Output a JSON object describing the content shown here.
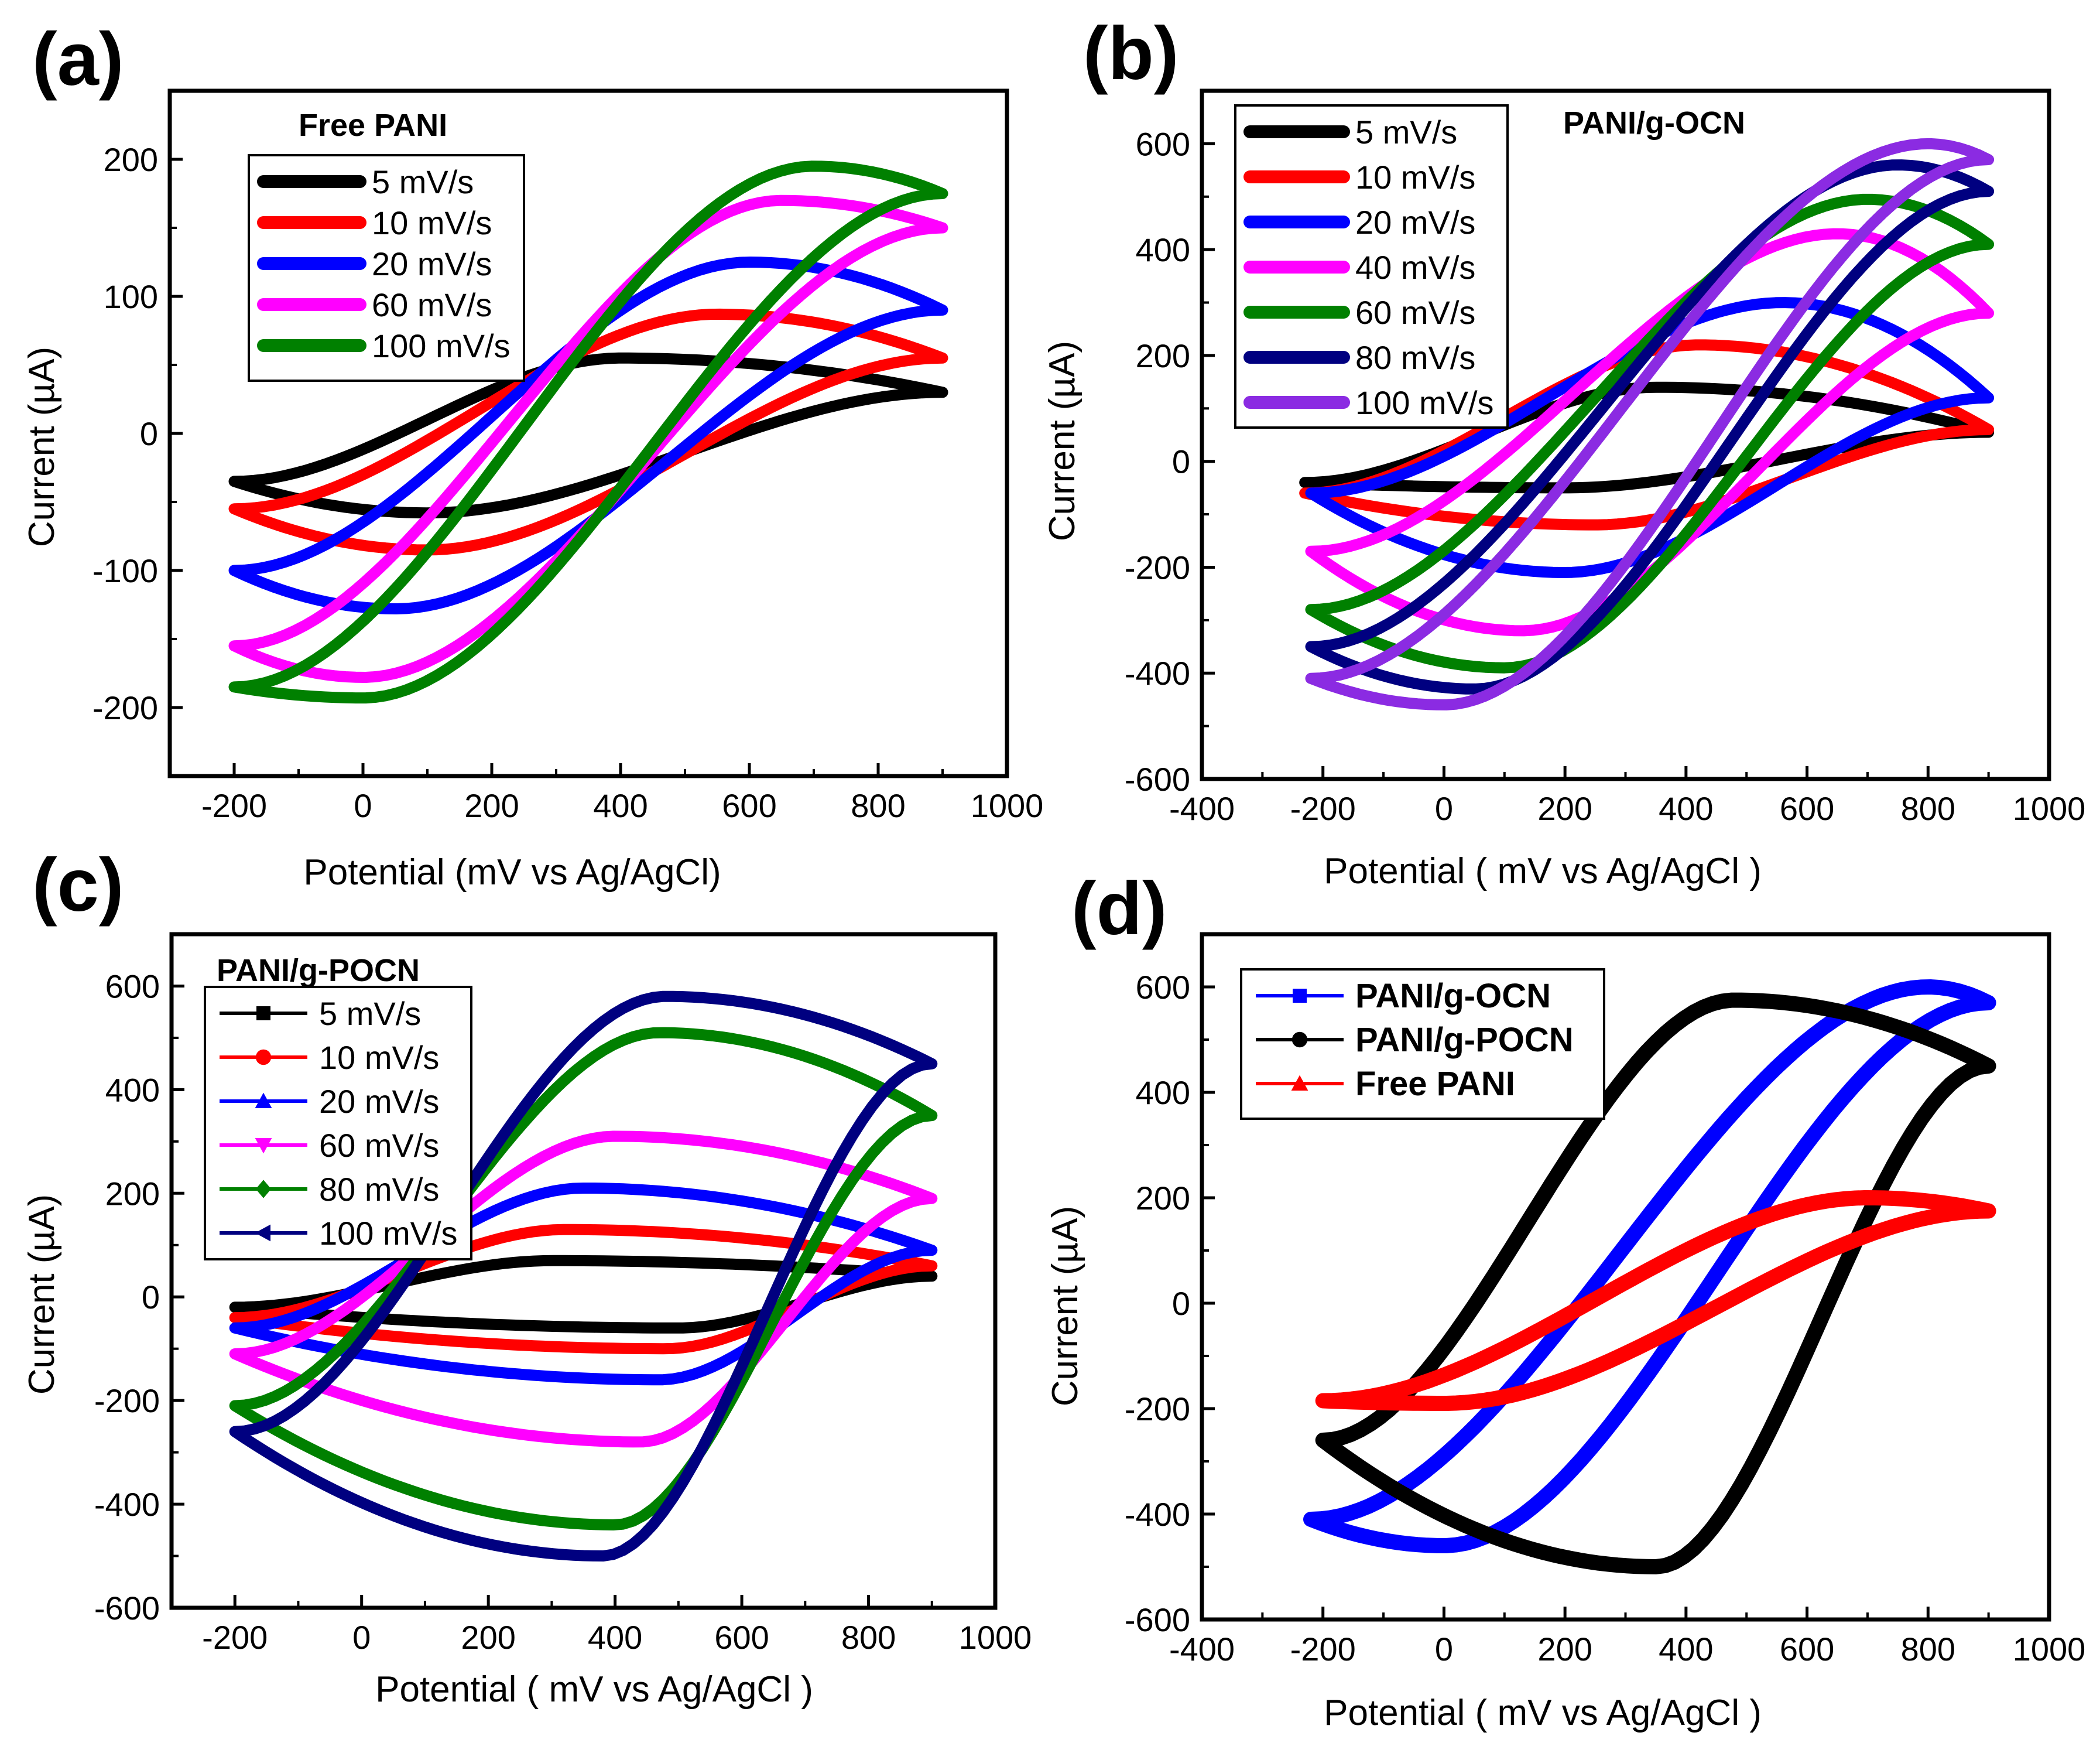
{
  "panels": [
    {
      "id": "a",
      "panel_label": "(a)",
      "legend_title": "Free PANI",
      "xlabel": "Potential (mV vs Ag/AgCl)",
      "ylabel": "Current (µA)",
      "xticks": [
        "-200",
        "0",
        "200",
        "400",
        "600",
        "800",
        "1000"
      ],
      "yticks": [
        "-200",
        "-100",
        "0",
        "100",
        "200"
      ]
    },
    {
      "id": "b",
      "panel_label": "(b)",
      "legend_title": "PANI/g-OCN",
      "xlabel": "Potential ( mV vs Ag/AgCl )",
      "ylabel": "Current (µA)",
      "xticks": [
        "-400",
        "-200",
        "0",
        "200",
        "400",
        "600",
        "800",
        "1000"
      ],
      "yticks": [
        "-600",
        "-400",
        "-200",
        "0",
        "200",
        "400",
        "600"
      ]
    },
    {
      "id": "c",
      "panel_label": "(c)",
      "legend_title": "PANI/g-POCN",
      "xlabel": "Potential ( mV vs Ag/AgCl )",
      "ylabel": "Current (µA)",
      "xticks": [
        "-200",
        "0",
        "200",
        "400",
        "600",
        "800",
        "1000"
      ],
      "yticks": [
        "-600",
        "-400",
        "-200",
        "0",
        "200",
        "400",
        "600"
      ]
    },
    {
      "id": "d",
      "panel_label": "(d)",
      "legend_title": "",
      "xlabel": "Potential ( mV vs Ag/AgCl )",
      "ylabel": "Current (µA)",
      "xticks": [
        "-400",
        "-200",
        "0",
        "200",
        "400",
        "600",
        "800",
        "1000"
      ],
      "yticks": [
        "-600",
        "-400",
        "-200",
        "0",
        "200",
        "400",
        "600"
      ]
    }
  ],
  "chart_data": [
    {
      "type": "line",
      "panel": "a",
      "title": "Free PANI",
      "xlabel": "Potential (mV vs Ag/AgCl)",
      "ylabel": "Current (µA)",
      "xlim": [
        -300,
        1000
      ],
      "ylim": [
        -250,
        250
      ],
      "legend_position": "top-left",
      "series": [
        {
          "name": "5 mV/s",
          "color": "#000000",
          "marker": "none",
          "loop": {
            "xmin": -200,
            "xmax": 900,
            "i_start": -35,
            "i_end": 30,
            "ox_peak_x": 400,
            "ox_peak_i": 55,
            "red_peak_x": 100,
            "red_peak_i": -58,
            "x_sweep_start": 420
          }
        },
        {
          "name": "10 mV/s",
          "color": "#ff0000",
          "marker": "none",
          "loop": {
            "xmin": -200,
            "xmax": 900,
            "i_start": -55,
            "i_end": 55,
            "ox_peak_x": 550,
            "ox_peak_i": 87,
            "red_peak_x": 100,
            "red_peak_i": -85,
            "x_sweep_start": 440
          }
        },
        {
          "name": "20 mV/s",
          "color": "#0000ff",
          "marker": "none",
          "loop": {
            "xmin": -200,
            "xmax": 900,
            "i_start": -100,
            "i_end": 90,
            "ox_peak_x": 600,
            "ox_peak_i": 125,
            "red_peak_x": 50,
            "red_peak_i": -128,
            "x_sweep_start": 450
          }
        },
        {
          "name": "60 mV/s",
          "color": "#ff00ff",
          "marker": "none",
          "loop": {
            "xmin": -200,
            "xmax": 900,
            "i_start": -155,
            "i_end": 150,
            "ox_peak_x": 650,
            "ox_peak_i": 170,
            "red_peak_x": 0,
            "red_peak_i": -178,
            "x_sweep_start": 480
          }
        },
        {
          "name": "100 mV/s",
          "color": "#008000",
          "marker": "none",
          "loop": {
            "xmin": -200,
            "xmax": 900,
            "i_start": -185,
            "i_end": 175,
            "ox_peak_x": 700,
            "ox_peak_i": 195,
            "red_peak_x": 0,
            "red_peak_i": -193,
            "x_sweep_start": 270
          }
        }
      ]
    },
    {
      "type": "line",
      "panel": "b",
      "title": "PANI/g-OCN",
      "xlabel": "Potential ( mV vs Ag/AgCl )",
      "ylabel": "Current (µA)",
      "xlim": [
        -400,
        1000
      ],
      "ylim": [
        -600,
        700
      ],
      "legend_position": "top-left",
      "series": [
        {
          "name": "5 mV/s",
          "color": "#000000",
          "marker": "none",
          "loop": {
            "xmin": -230,
            "xmax": 900,
            "i_start": -40,
            "i_end": 55,
            "ox_peak_x": 350,
            "ox_peak_i": 140,
            "red_peak_x": 200,
            "red_peak_i": -50,
            "x_sweep_start": 300
          }
        },
        {
          "name": "10 mV/s",
          "color": "#ff0000",
          "marker": "none",
          "loop": {
            "xmin": -230,
            "xmax": 900,
            "i_start": -60,
            "i_end": 60,
            "ox_peak_x": 420,
            "ox_peak_i": 220,
            "red_peak_x": 250,
            "red_peak_i": -120,
            "x_sweep_start": 300
          }
        },
        {
          "name": "20 mV/s",
          "color": "#0000ff",
          "marker": "none",
          "loop": {
            "xmin": -220,
            "xmax": 900,
            "i_start": -60,
            "i_end": 120,
            "ox_peak_x": 560,
            "ox_peak_i": 300,
            "red_peak_x": 200,
            "red_peak_i": -210,
            "x_sweep_start": 280
          }
        },
        {
          "name": "40 mV/s",
          "color": "#ff00ff",
          "marker": "none",
          "loop": {
            "xmin": -220,
            "xmax": 900,
            "i_start": -170,
            "i_end": 280,
            "ox_peak_x": 650,
            "ox_peak_i": 430,
            "red_peak_x": 130,
            "red_peak_i": -320,
            "x_sweep_start": 260
          }
        },
        {
          "name": "60 mV/s",
          "color": "#008000",
          "marker": "none",
          "loop": {
            "xmin": -220,
            "xmax": 900,
            "i_start": -280,
            "i_end": 410,
            "ox_peak_x": 700,
            "ox_peak_i": 495,
            "red_peak_x": 100,
            "red_peak_i": -390,
            "x_sweep_start": 260
          }
        },
        {
          "name": "80 mV/s",
          "color": "#000080",
          "marker": "none",
          "loop": {
            "xmin": -220,
            "xmax": 900,
            "i_start": -350,
            "i_end": 510,
            "ox_peak_x": 750,
            "ox_peak_i": 560,
            "red_peak_x": 50,
            "red_peak_i": -430,
            "x_sweep_start": 260
          }
        },
        {
          "name": "100 mV/s",
          "color": "#8b2be2",
          "marker": "none",
          "loop": {
            "xmin": -220,
            "xmax": 900,
            "i_start": -410,
            "i_end": 570,
            "ox_peak_x": 800,
            "ox_peak_i": 600,
            "red_peak_x": 0,
            "red_peak_i": -460,
            "x_sweep_start": 260
          }
        }
      ]
    },
    {
      "type": "line",
      "panel": "c",
      "title": "PANI/g-POCN",
      "xlabel": "Potential ( mV vs Ag/AgCl )",
      "ylabel": "Current (µA)",
      "xlim": [
        -300,
        1000
      ],
      "ylim": [
        -600,
        700
      ],
      "legend_position": "top-left",
      "series": [
        {
          "name": "5 mV/s",
          "color": "#000000",
          "marker": "square",
          "loop": {
            "xmin": -200,
            "xmax": 900,
            "i_start": -20,
            "i_end": 40,
            "ox_peak_x": 300,
            "ox_peak_i": 70,
            "red_peak_x": 500,
            "red_peak_i": -60,
            "x_sweep_start": 150
          }
        },
        {
          "name": "10 mV/s",
          "color": "#ff0000",
          "marker": "circle",
          "loop": {
            "xmin": -200,
            "xmax": 900,
            "i_start": -40,
            "i_end": 60,
            "ox_peak_x": 320,
            "ox_peak_i": 130,
            "red_peak_x": 480,
            "red_peak_i": -100,
            "x_sweep_start": 150
          }
        },
        {
          "name": "20 mV/s",
          "color": "#0000ff",
          "marker": "triangle-up",
          "loop": {
            "xmin": -200,
            "xmax": 900,
            "i_start": -60,
            "i_end": 90,
            "ox_peak_x": 350,
            "ox_peak_i": 210,
            "red_peak_x": 470,
            "red_peak_i": -160,
            "x_sweep_start": 150
          }
        },
        {
          "name": "60 mV/s",
          "color": "#ff00ff",
          "marker": "triangle-down",
          "loop": {
            "xmin": -200,
            "xmax": 900,
            "i_start": -110,
            "i_end": 190,
            "ox_peak_x": 400,
            "ox_peak_i": 310,
            "red_peak_x": 440,
            "red_peak_i": -280,
            "x_sweep_start": 150
          }
        },
        {
          "name": "80 mV/s",
          "color": "#008000",
          "marker": "diamond",
          "loop": {
            "xmin": -200,
            "xmax": 900,
            "i_start": -210,
            "i_end": 350,
            "ox_peak_x": 470,
            "ox_peak_i": 510,
            "red_peak_x": 400,
            "red_peak_i": -440,
            "x_sweep_start": 150
          }
        },
        {
          "name": "100 mV/s",
          "color": "#000080",
          "marker": "triangle-left",
          "loop": {
            "xmin": -200,
            "xmax": 900,
            "i_start": -260,
            "i_end": 450,
            "ox_peak_x": 480,
            "ox_peak_i": 580,
            "red_peak_x": 380,
            "red_peak_i": -500,
            "x_sweep_start": 150
          }
        }
      ]
    },
    {
      "type": "line",
      "panel": "d",
      "title": "",
      "xlabel": "Potential ( mV vs Ag/AgCl )",
      "ylabel": "Current (µA)",
      "xlim": [
        -400,
        1000
      ],
      "ylim": [
        -600,
        700
      ],
      "legend_position": "top-left",
      "series": [
        {
          "name": "PANI/g-OCN",
          "color": "#0000ff",
          "marker": "square",
          "loop": {
            "xmin": -220,
            "xmax": 900,
            "i_start": -410,
            "i_end": 570,
            "ox_peak_x": 800,
            "ox_peak_i": 600,
            "red_peak_x": 0,
            "red_peak_i": -460,
            "x_sweep_start": 260
          }
        },
        {
          "name": "PANI/g-POCN",
          "color": "#000000",
          "marker": "circle",
          "loop": {
            "xmin": -200,
            "xmax": 900,
            "i_start": -260,
            "i_end": 450,
            "ox_peak_x": 480,
            "ox_peak_i": 575,
            "red_peak_x": 350,
            "red_peak_i": -500,
            "x_sweep_start": 150
          }
        },
        {
          "name": "Free PANI",
          "color": "#ff0000",
          "marker": "triangle-up",
          "loop": {
            "xmin": -200,
            "xmax": 900,
            "i_start": -185,
            "i_end": 175,
            "ox_peak_x": 700,
            "ox_peak_i": 200,
            "red_peak_x": 0,
            "red_peak_i": -190,
            "x_sweep_start": 270
          }
        }
      ]
    }
  ]
}
